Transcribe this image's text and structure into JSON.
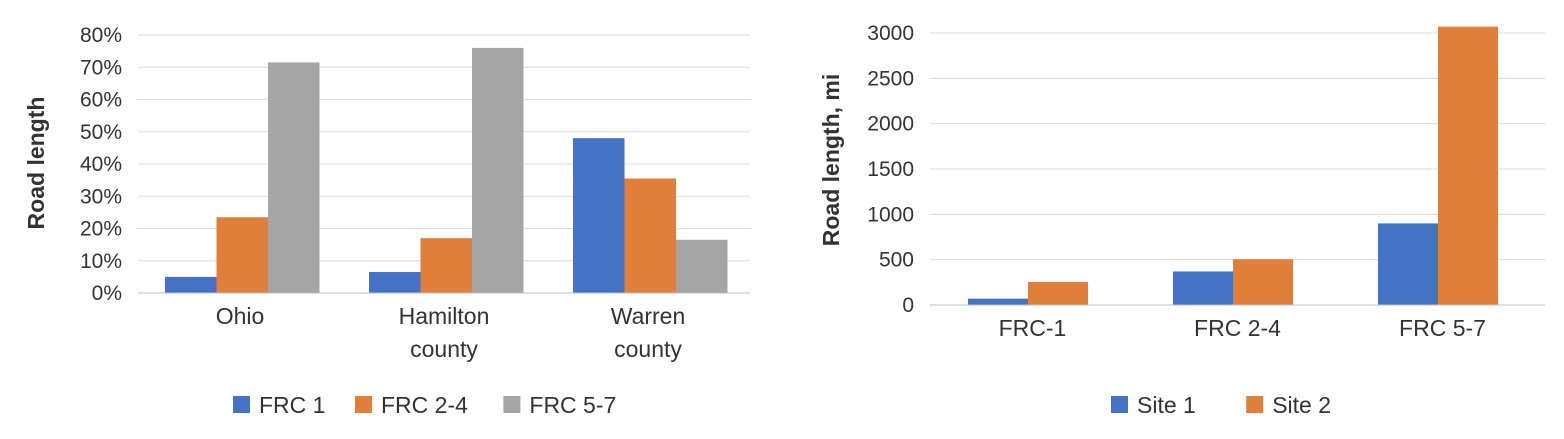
{
  "chart_data": [
    {
      "type": "bar",
      "ylabel": "Road length",
      "yticks": [
        "0%",
        "10%",
        "20%",
        "30%",
        "40%",
        "50%",
        "60%",
        "70%",
        "80%"
      ],
      "ylim": [
        0,
        80
      ],
      "categories": [
        [
          "Ohio"
        ],
        [
          "Hamilton",
          "county"
        ],
        [
          "Warren",
          "county"
        ]
      ],
      "series": [
        {
          "name": "FRC 1",
          "color": "#4472c4",
          "values": [
            5,
            6.5,
            48
          ]
        },
        {
          "name": "FRC 2-4",
          "color": "#e07f3c",
          "values": [
            23.5,
            17,
            35.5
          ]
        },
        {
          "name": "FRC 5-7",
          "color": "#a5a5a5",
          "values": [
            71.5,
            76,
            16.5
          ]
        }
      ],
      "grid": true,
      "legend": "bottom"
    },
    {
      "type": "bar",
      "ylabel": "Road length, mi",
      "yticks": [
        "0",
        "500",
        "1000",
        "1500",
        "2000",
        "2500",
        "3000"
      ],
      "ylim": [
        0,
        3000
      ],
      "categories": [
        [
          "FRC-1"
        ],
        [
          "FRC 2-4"
        ],
        [
          "FRC 5-7"
        ]
      ],
      "series": [
        {
          "name": "Site 1",
          "color": "#4472c4",
          "values": [
            70,
            370,
            900
          ]
        },
        {
          "name": "Site 2",
          "color": "#e07f3c",
          "values": [
            255,
            505,
            3070
          ]
        }
      ],
      "grid": true,
      "legend": "bottom"
    }
  ]
}
